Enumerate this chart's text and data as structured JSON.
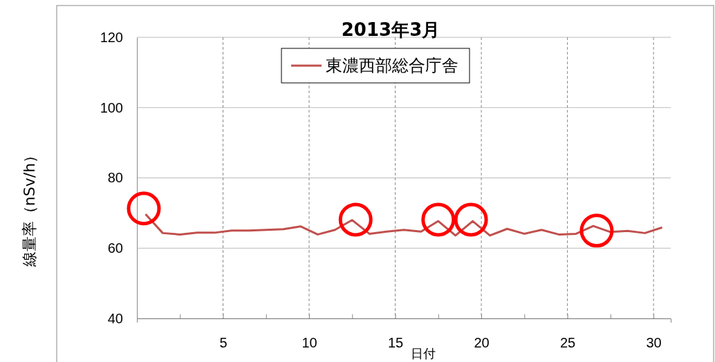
{
  "chart_data": {
    "type": "line",
    "title": "2013年3月",
    "xlabel": "日付",
    "ylabel": "線量率（nSv/h）",
    "x": [
      0.5,
      1.5,
      2.5,
      3.5,
      4.5,
      5.5,
      6.5,
      7.5,
      8.5,
      9.5,
      10.5,
      11.5,
      12.5,
      13.5,
      14.5,
      15.5,
      16.5,
      17.5,
      18.5,
      19.5,
      20.5,
      21.5,
      22.5,
      23.5,
      24.5,
      25.5,
      26.5,
      27.5,
      28.5,
      29.5,
      30.5
    ],
    "series": [
      {
        "name": "東濃西部総合庁舎",
        "color": "#c0504d",
        "values": [
          69.7,
          64.3,
          63.9,
          64.4,
          64.4,
          65.0,
          65.0,
          65.2,
          65.4,
          66.2,
          63.9,
          65.2,
          68.0,
          64.1,
          64.7,
          65.2,
          64.7,
          67.7,
          63.6,
          67.7,
          63.6,
          65.5,
          64.1,
          65.2,
          63.9,
          64.1,
          66.3,
          64.6,
          64.9,
          64.3,
          65.9
        ]
      },
      {
        "type": "scatter",
        "color": "#ff0000",
        "marker": "circle",
        "x": [
          0.4,
          12.7,
          17.5,
          19.4,
          26.7
        ],
        "values": [
          71.3,
          68.1,
          68.1,
          68.1,
          65.0
        ]
      }
    ],
    "xlim": [
      0,
      31
    ],
    "xticks": [
      {
        "value": 0,
        "label": null
      },
      {
        "value": 2.5,
        "label": null
      },
      5,
      {
        "value": 7.5,
        "label": null
      },
      10,
      {
        "value": 12.5,
        "label": null
      },
      15,
      {
        "value": 17.5,
        "label": null
      },
      20,
      {
        "value": 22.5,
        "label": null
      },
      25,
      {
        "value": 27.5,
        "label": null
      },
      30
    ],
    "ylim": [
      40,
      120
    ],
    "yticks": [
      40,
      60,
      80,
      100,
      120
    ],
    "grid": true,
    "legend": "top",
    "marker": "none",
    "line_style": "solid"
  }
}
